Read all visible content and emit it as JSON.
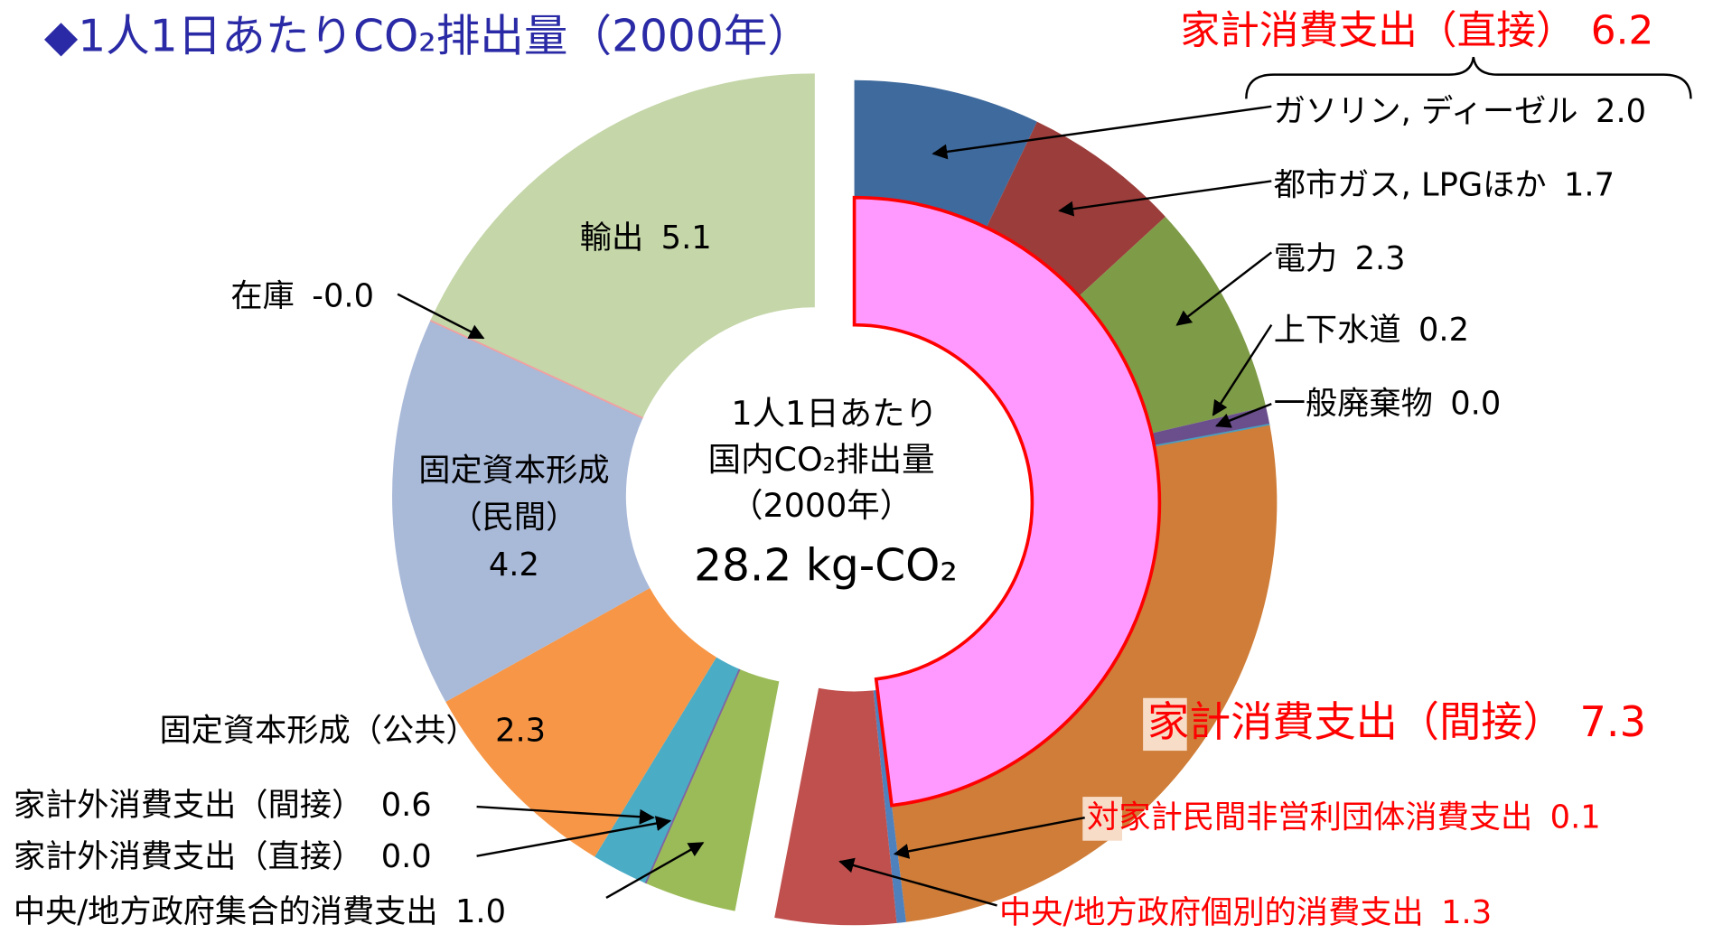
{
  "chart_data": {
    "type": "donut",
    "title": "◆1人1日あたりCO₂排出量（2000年）",
    "center_text": [
      "1人1日あたり",
      "国内CO₂排出量",
      "（2000年）",
      "28.2 kg-CO₂"
    ],
    "groups": [
      {
        "name": "家計消費支出（直接）",
        "value": 6.2,
        "value_label": "6.2"
      },
      {
        "name": "家計消費支出（間接）",
        "value": 7.3,
        "value_label": "7.3"
      }
    ],
    "segments": [
      {
        "name": "ガソリン, ディーゼル",
        "value": 2.0,
        "value_label": "2.0",
        "color": "#3f6a9d"
      },
      {
        "name": "都市ガス, LPGほか",
        "value": 1.7,
        "value_label": "1.7",
        "color": "#9b3d3b"
      },
      {
        "name": "電力",
        "value": 2.3,
        "value_label": "2.3",
        "color": "#7e9b47"
      },
      {
        "name": "上下水道",
        "value": 0.2,
        "value_label": "0.2",
        "color": "#6a4f8c"
      },
      {
        "name": "一般廃棄物",
        "value": 0.0,
        "value_label": "0.0",
        "color": "#4b9ec0"
      },
      {
        "name": "家計消費支出（間接）",
        "value": 7.3,
        "value_label": "7.3",
        "color": "#cf7d38"
      },
      {
        "name": "対家計民間非営利団体消費支出",
        "value": 0.1,
        "value_label": "0.1",
        "color": "#4f81bd"
      },
      {
        "name": "中央/地方政府個別的消費支出",
        "value": 1.3,
        "value_label": "1.3",
        "color": "#c0504d"
      },
      {
        "name": "中央/地方政府集合的消費支出",
        "value": 1.0,
        "value_label": "1.0",
        "color": "#9bbb59"
      },
      {
        "name": "家計外消費支出（直接）",
        "value": 0.0,
        "value_label": "0.0",
        "color": "#8064a2"
      },
      {
        "name": "家計外消費支出（間接）",
        "value": 0.6,
        "value_label": "0.6",
        "color": "#4bacc6"
      },
      {
        "name": "固定資本形成（公共）",
        "value": 2.3,
        "value_label": "2.3",
        "color": "#f79646"
      },
      {
        "name_lines": [
          "固定資本形成",
          "（民間）"
        ],
        "value": 4.2,
        "value_label": "4.2",
        "color": "#a9b9d8"
      },
      {
        "name": "在庫",
        "value": 0,
        "value_label": "-0.0",
        "color": "#f2a0a0"
      },
      {
        "name": "輸出",
        "value": 5.1,
        "value_label": "5.1",
        "color": "#c5d6a9"
      }
    ]
  }
}
